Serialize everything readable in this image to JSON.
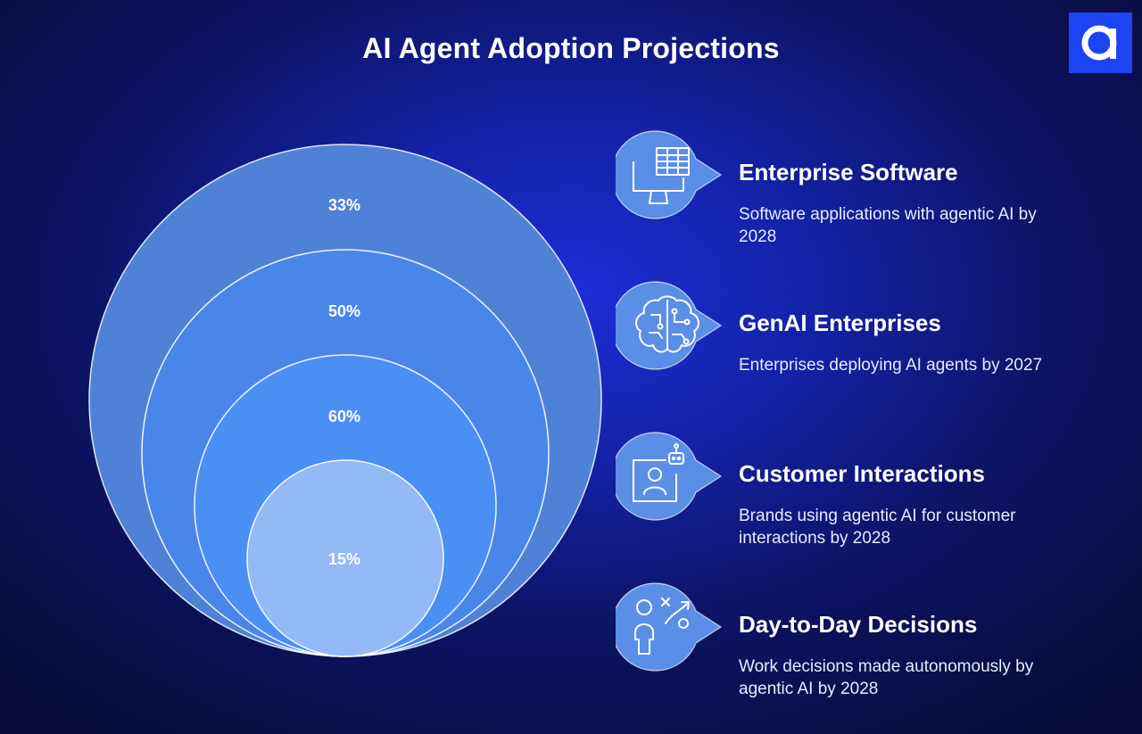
{
  "title": "AI Agent Adoption Projections",
  "logo": {
    "letter": "a",
    "color": "#1d44f2"
  },
  "rings": [
    {
      "label": "33%",
      "color": "#4f82d6"
    },
    {
      "label": "50%",
      "color": "#4a86ea"
    },
    {
      "label": "60%",
      "color": "#4a8ff4"
    },
    {
      "label": "15%",
      "color": "#93b9f7"
    }
  ],
  "items": [
    {
      "icon": "monitor-table-icon",
      "title": "Enterprise Software",
      "description": "Software applications with agentic AI by 2028"
    },
    {
      "icon": "brain-circuit-icon",
      "title": "GenAI Enterprises",
      "description": "Enterprises deploying AI agents by 2027"
    },
    {
      "icon": "customer-robot-icon",
      "title": "Customer Interactions",
      "description": "Brands using agentic AI for customer interactions by 2028"
    },
    {
      "icon": "person-strategy-icon",
      "title": "Day-to-Day Decisions",
      "description": "Work decisions made autonomously by agentic AI by 2028"
    }
  ]
}
